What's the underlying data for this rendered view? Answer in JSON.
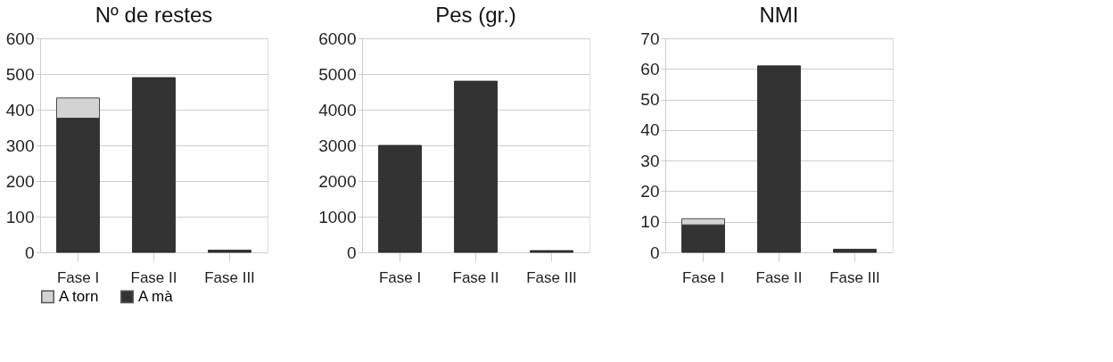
{
  "chart_data": [
    {
      "type": "bar",
      "title": "Nº de restes",
      "categories": [
        "Fase I",
        "Fase II",
        "Fase III"
      ],
      "stacked": true,
      "grid": "y",
      "legend": "bottom left",
      "ylim": [
        0,
        600
      ],
      "yticks": [
        0,
        100,
        200,
        300,
        400,
        500,
        600
      ],
      "series": [
        {
          "name": "A mà",
          "color": "#333333",
          "values": [
            376,
            490,
            6
          ]
        },
        {
          "name": "A torn",
          "color": "#d3d3d3",
          "values": [
            57,
            null,
            null
          ]
        }
      ]
    },
    {
      "type": "bar",
      "title": "Pes (gr.)",
      "categories": [
        "Fase I",
        "Fase II",
        "Fase III"
      ],
      "stacked": true,
      "grid": "y",
      "legend": false,
      "ylim": [
        0,
        6000
      ],
      "yticks": [
        0,
        1000,
        2000,
        3000,
        4000,
        5000,
        6000
      ],
      "series": [
        {
          "color": "#333333",
          "values": [
            3000,
            4800,
            50
          ]
        }
      ]
    },
    {
      "type": "bar",
      "title": "NMI",
      "categories": [
        "Fase I",
        "Fase II",
        "Fase III"
      ],
      "stacked": true,
      "grid": "y",
      "legend": false,
      "ylim": [
        0,
        70
      ],
      "yticks": [
        0,
        10,
        20,
        30,
        40,
        50,
        60,
        70
      ],
      "series": [
        {
          "color": "#333333",
          "values": [
            9,
            61,
            1
          ]
        },
        {
          "color": "#d3d3d3",
          "values": [
            2,
            null,
            null
          ]
        }
      ]
    }
  ]
}
